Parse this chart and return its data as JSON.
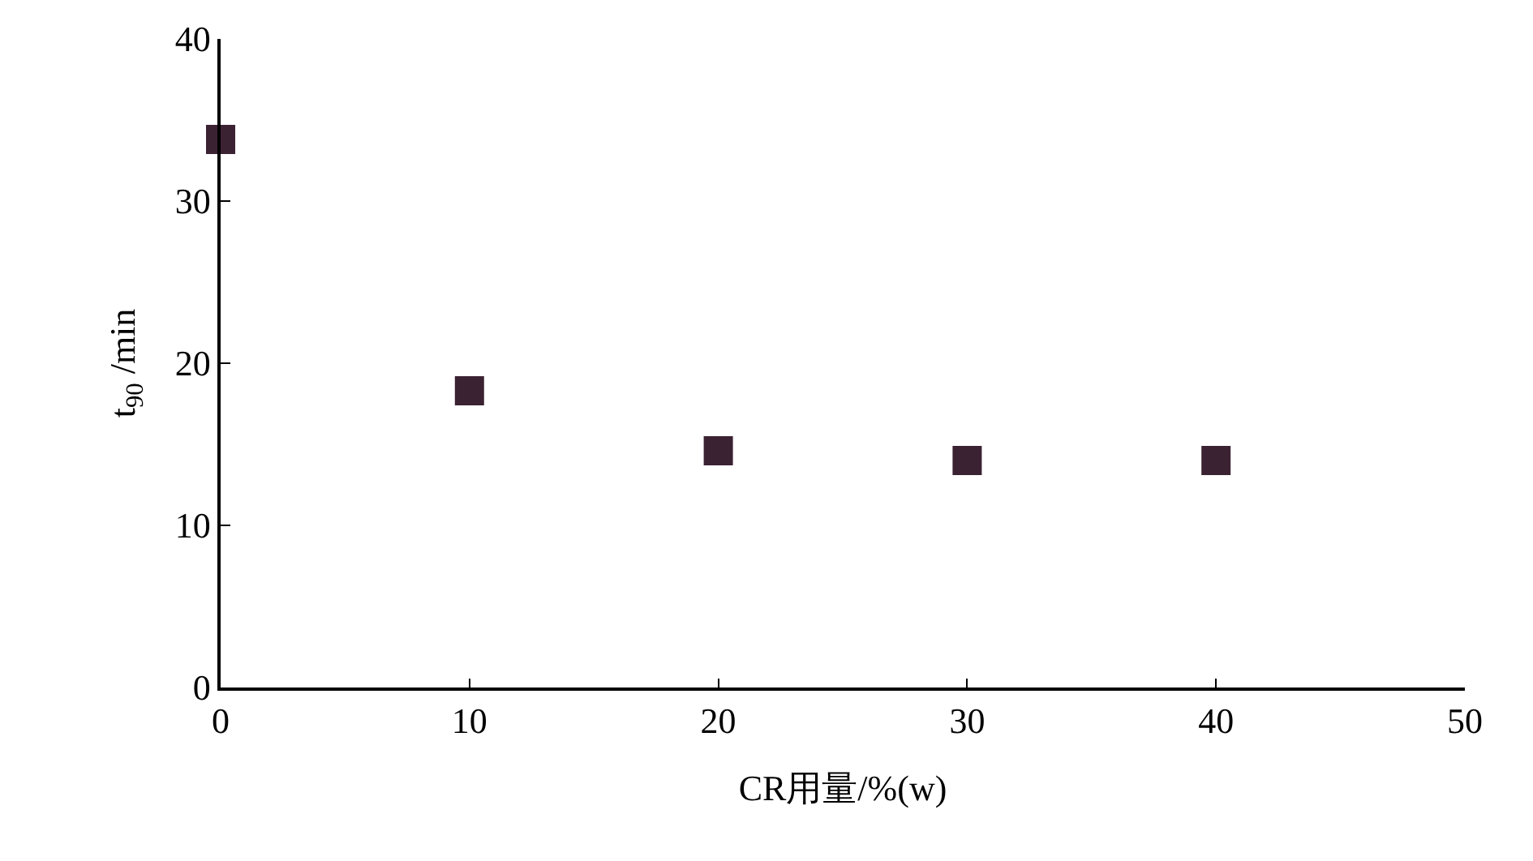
{
  "chart_data": {
    "type": "scatter",
    "xlabel": "CR用量/%(w)",
    "ylabel": "t$_{90}$ /min",
    "x": [
      0,
      10,
      20,
      30,
      40
    ],
    "series": [
      {
        "color": "#3b2233",
        "values": [
          33.8,
          18.3,
          14.6,
          14.0,
          14.0
        ]
      }
    ],
    "xlim": [
      0,
      50
    ],
    "xticks": [
      0,
      10,
      20,
      30,
      40,
      50
    ],
    "ylim": [
      0,
      40
    ],
    "yticks": [
      0,
      10,
      20,
      30,
      40
    ],
    "marker": "square"
  }
}
